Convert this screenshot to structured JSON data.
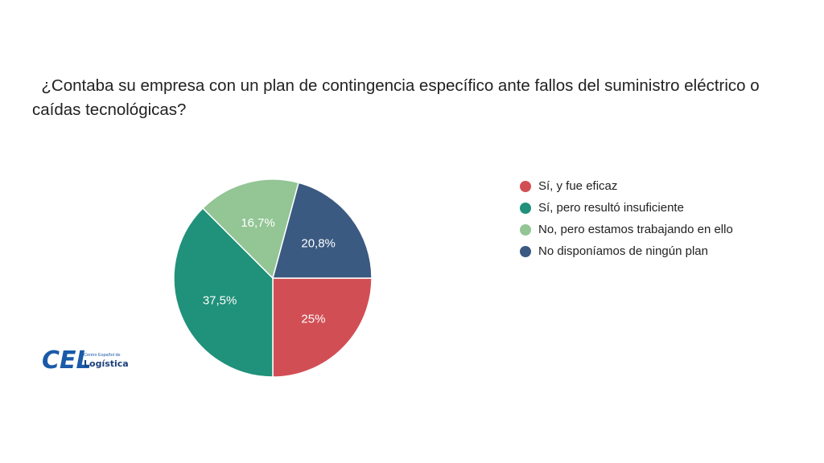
{
  "chart_data": {
    "type": "pie",
    "title": "  ¿Contaba su empresa con un plan de contingencia específico ante fallos del suministro eléctrico o caídas tecnológicas?",
    "slices": [
      {
        "label": "Sí, y fue eficaz",
        "value": 25,
        "display": "25%",
        "color": "#d24e55"
      },
      {
        "label": "Sí, pero resultó insuficiente",
        "value": 37.5,
        "display": "37,5%",
        "color": "#20917a"
      },
      {
        "label": "No, pero estamos trabajando en ello",
        "value": 16.7,
        "display": "16,7%",
        "color": "#93c595"
      },
      {
        "label": "No disponíamos de ningún plan",
        "value": 20.8,
        "display": "20,8%",
        "color": "#3b5a82"
      }
    ],
    "legend_position": "right"
  },
  "logo": {
    "main": "CEL",
    "small": "Centro Español de",
    "sub": "Logística"
  }
}
